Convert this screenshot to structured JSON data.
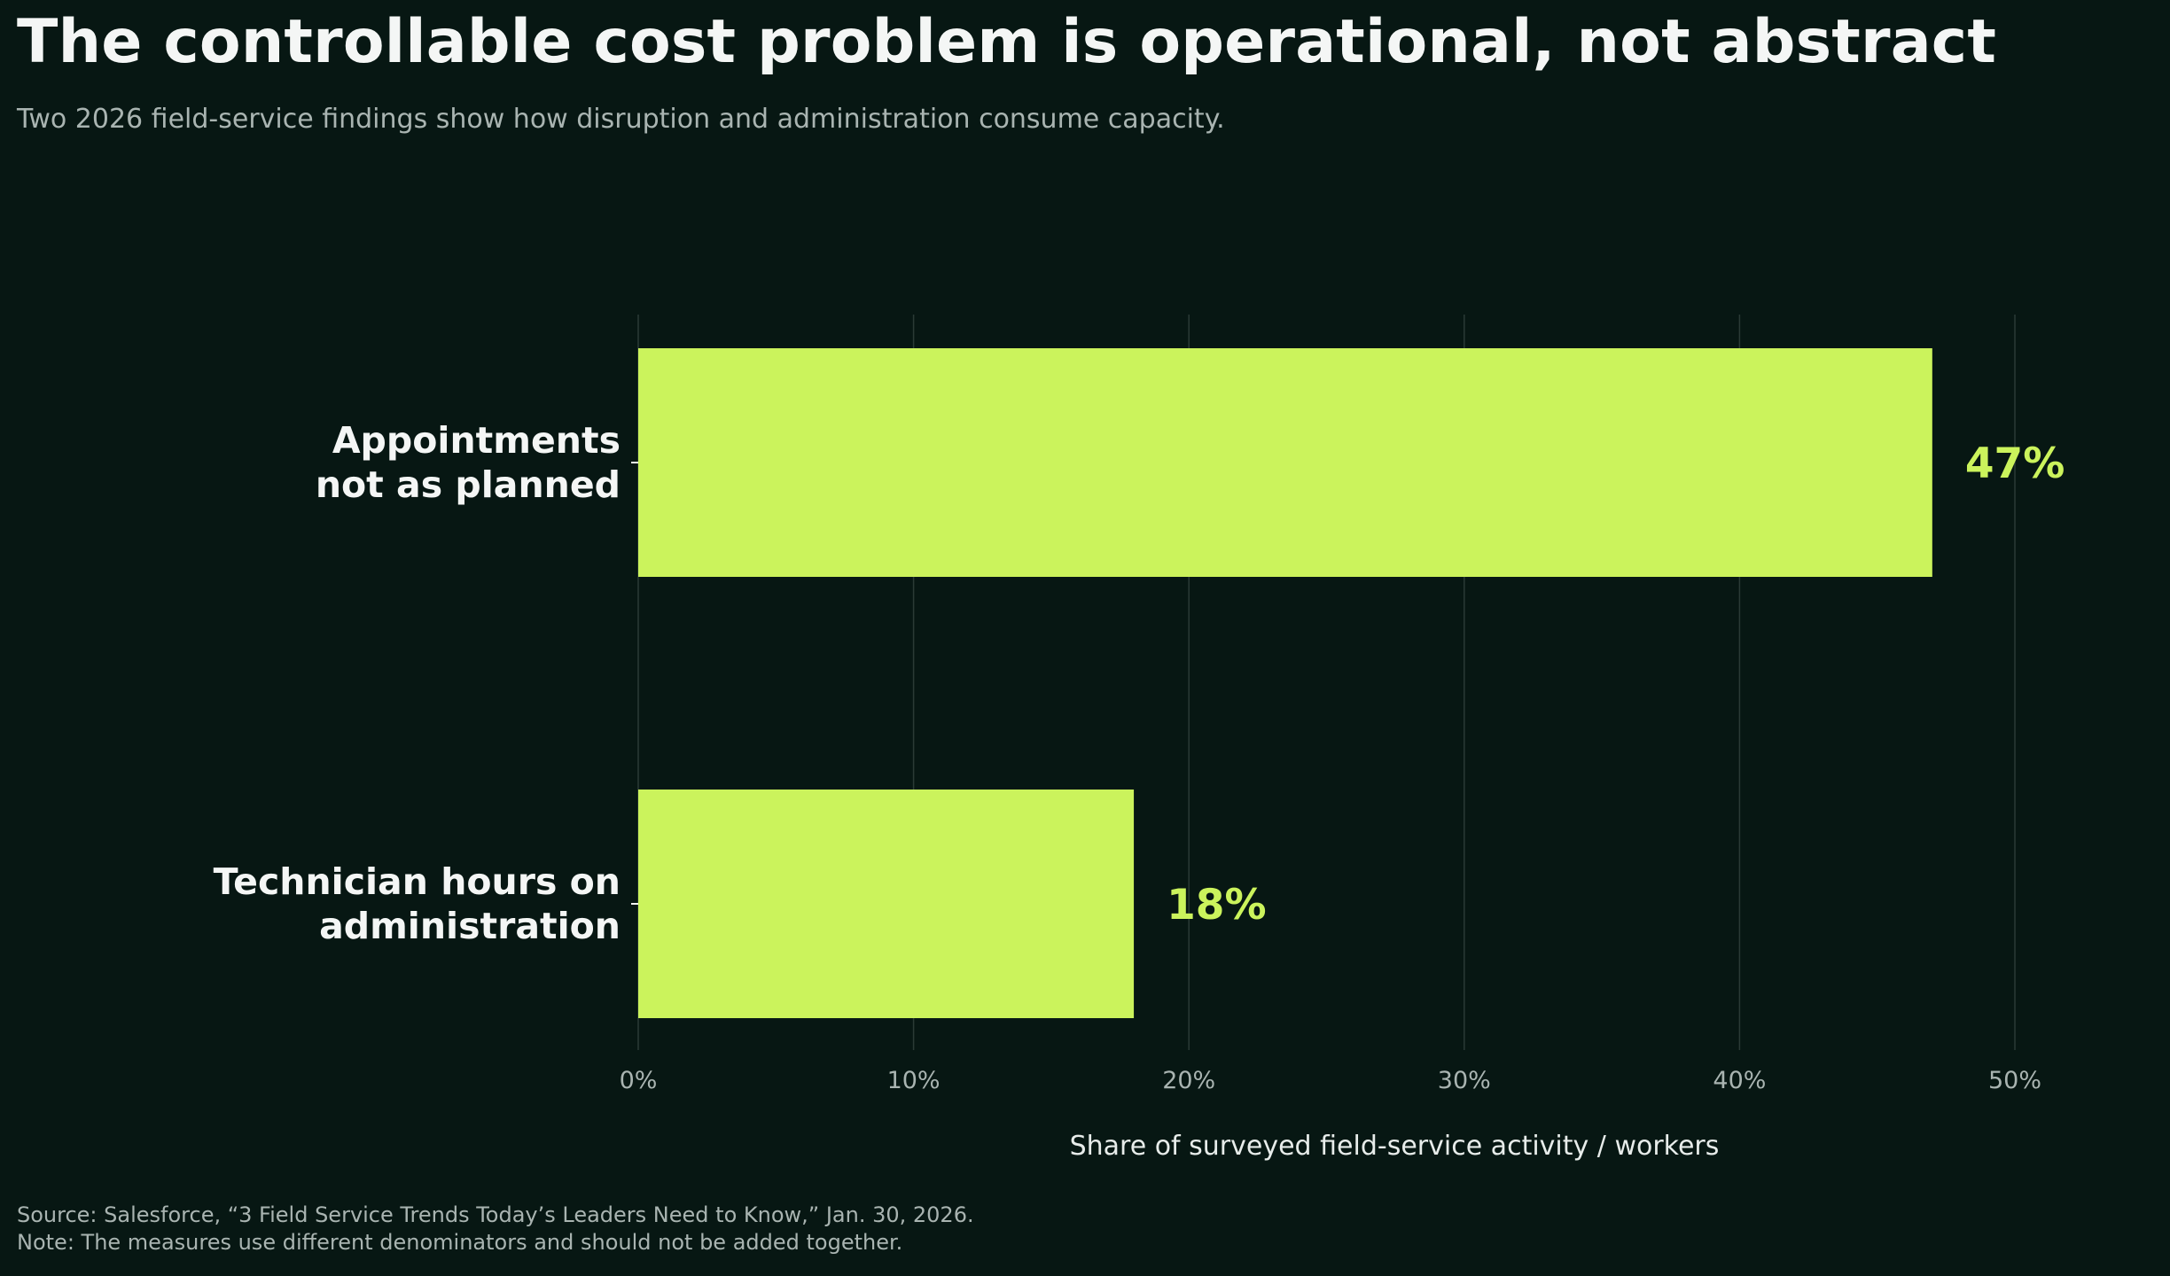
{
  "header": {
    "title": "The controllable cost problem is operational, not abstract",
    "subtitle": "Two 2026 field-service findings show how disruption and administration consume capacity."
  },
  "footer": {
    "source": "Source: Salesforce, “3 Field Service Trends Today’s Leaders Need to Know,” Jan. 30, 2026.",
    "note": "Note: The measures use different denominators and should not be added together."
  },
  "colors": {
    "background": "#071713",
    "bar": "#CBF35C",
    "value_label": "#CBF35C",
    "text": "#F4F6F5",
    "muted_text": "#A9B4B1",
    "grid": "#2A3A36"
  },
  "chart_data": {
    "type": "bar",
    "orientation": "horizontal",
    "title": "The controllable cost problem is operational, not abstract",
    "subtitle": "Two 2026 field-service findings show how disruption and administration consume capacity.",
    "categories": [
      [
        "Appointments",
        "not as planned"
      ],
      [
        "Technician hours on",
        "administration"
      ]
    ],
    "values": [
      47,
      18
    ],
    "value_labels": [
      "47%",
      "18%"
    ],
    "xlabel": "Share of surveyed field-service activity / workers",
    "ylabel": "",
    "xlim": [
      0,
      52
    ],
    "xticks": [
      0,
      10,
      20,
      30,
      40,
      50
    ],
    "xtick_labels": [
      "0%",
      "10%",
      "20%",
      "30%",
      "40%",
      "50%"
    ],
    "grid": "vertical"
  }
}
